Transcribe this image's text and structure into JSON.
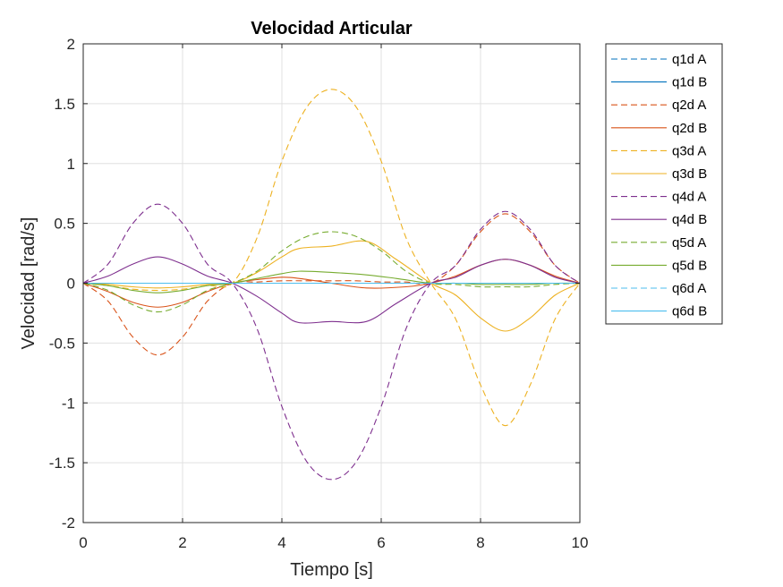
{
  "chart_data": {
    "type": "line",
    "title": "Velocidad Articular",
    "xlabel": "Tiempo [s]",
    "ylabel": "Velocidad [rad/s]",
    "xlim": [
      0,
      10
    ],
    "ylim": [
      -2,
      2
    ],
    "xticks": [
      0,
      2,
      4,
      6,
      8,
      10
    ],
    "yticks": [
      -2,
      -1.5,
      -1,
      -0.5,
      0,
      0.5,
      1,
      1.5,
      2
    ],
    "xtick_labels": [
      "0",
      "2",
      "4",
      "6",
      "8",
      "10"
    ],
    "ytick_labels": [
      "-2",
      "-1.5",
      "-1",
      "-0.5",
      "0",
      "0.5",
      "1",
      "1.5",
      "2"
    ],
    "grid": true,
    "legend_position": "outside-right-top",
    "series": [
      {
        "name": "q1d A",
        "color": "#0072BD",
        "dash": "dashed",
        "x": [
          0,
          3,
          7,
          10
        ],
        "y": [
          0,
          0,
          0,
          0
        ]
      },
      {
        "name": "q1d B",
        "color": "#0072BD",
        "dash": "solid",
        "x": [
          0,
          3,
          7,
          10
        ],
        "y": [
          0,
          0,
          0,
          0
        ]
      },
      {
        "name": "q2d A",
        "color": "#D95319",
        "dash": "dashed",
        "x": [
          0,
          0.5,
          1,
          1.5,
          2,
          2.5,
          3,
          3.5,
          4,
          4.5,
          5,
          5.5,
          6,
          6.5,
          7,
          7.5,
          8,
          8.5,
          9,
          9.5,
          10
        ],
        "y": [
          0,
          -0.15,
          -0.45,
          -0.6,
          -0.45,
          -0.15,
          0,
          0.01,
          0.02,
          0.02,
          0.02,
          0.02,
          0.01,
          0.01,
          0,
          0.15,
          0.43,
          0.58,
          0.43,
          0.15,
          0
        ]
      },
      {
        "name": "q2d B",
        "color": "#D95319",
        "dash": "solid",
        "x": [
          0,
          0.5,
          1,
          1.5,
          2,
          2.5,
          3,
          3.5,
          4,
          4.35,
          5,
          5.7,
          6.5,
          7,
          7.5,
          8,
          8.5,
          9,
          9.5,
          10
        ],
        "y": [
          0,
          -0.07,
          -0.16,
          -0.2,
          -0.16,
          -0.07,
          0,
          0.03,
          0.05,
          0.04,
          0,
          -0.04,
          -0.03,
          0,
          0.06,
          0.15,
          0.2,
          0.15,
          0.06,
          0
        ]
      },
      {
        "name": "q3d A",
        "color": "#EDB120",
        "dash": "dashed",
        "x": [
          0,
          0.5,
          1,
          1.5,
          2,
          2.5,
          3,
          3.5,
          4,
          4.5,
          5,
          5.5,
          6,
          6.5,
          7,
          7.5,
          8,
          8.5,
          9,
          9.5,
          10
        ],
        "y": [
          0,
          -0.02,
          -0.05,
          -0.06,
          -0.05,
          -0.02,
          0,
          0.38,
          1.02,
          1.47,
          1.62,
          1.47,
          1.02,
          0.38,
          0,
          -0.3,
          -0.85,
          -1.19,
          -0.85,
          -0.3,
          0
        ]
      },
      {
        "name": "q3d B",
        "color": "#EDB120",
        "dash": "solid",
        "x": [
          0,
          0.5,
          1,
          1.5,
          2,
          2.5,
          3,
          3.5,
          4,
          4.35,
          5,
          5.7,
          6.3,
          7,
          7.5,
          8,
          8.5,
          9,
          9.5,
          10
        ],
        "y": [
          0,
          -0.01,
          -0.03,
          -0.04,
          -0.03,
          -0.01,
          0,
          0.09,
          0.22,
          0.29,
          0.31,
          0.35,
          0.2,
          0,
          -0.1,
          -0.29,
          -0.4,
          -0.29,
          -0.1,
          0
        ]
      },
      {
        "name": "q4d A",
        "color": "#7E2F8E",
        "dash": "dashed",
        "x": [
          0,
          0.5,
          1,
          1.5,
          2,
          2.5,
          3,
          3.5,
          4,
          4.5,
          5,
          5.5,
          6,
          6.5,
          7,
          7.5,
          8,
          8.5,
          9,
          9.5,
          10
        ],
        "y": [
          0,
          0.16,
          0.5,
          0.66,
          0.5,
          0.16,
          0,
          -0.38,
          -1.03,
          -1.49,
          -1.64,
          -1.49,
          -1.03,
          -0.38,
          0,
          0.15,
          0.45,
          0.6,
          0.45,
          0.15,
          0
        ]
      },
      {
        "name": "q4d B",
        "color": "#7E2F8E",
        "dash": "solid",
        "x": [
          0,
          0.5,
          1,
          1.5,
          2,
          2.5,
          3,
          3.5,
          4,
          4.35,
          5,
          5.7,
          6.3,
          7,
          7.5,
          8,
          8.5,
          9,
          9.5,
          10
        ],
        "y": [
          0,
          0.06,
          0.16,
          0.22,
          0.16,
          0.06,
          0,
          -0.11,
          -0.25,
          -0.33,
          -0.32,
          -0.32,
          -0.17,
          0,
          0.05,
          0.15,
          0.2,
          0.15,
          0.05,
          0
        ]
      },
      {
        "name": "q5d A",
        "color": "#77AC30",
        "dash": "dashed",
        "x": [
          0,
          0.5,
          1,
          1.5,
          2,
          2.5,
          3,
          3.5,
          4,
          4.5,
          5,
          5.5,
          6,
          6.5,
          7,
          7.5,
          8,
          8.5,
          9,
          9.5,
          10
        ],
        "y": [
          0,
          -0.06,
          -0.18,
          -0.24,
          -0.18,
          -0.06,
          0,
          0.1,
          0.27,
          0.39,
          0.43,
          0.39,
          0.27,
          0.1,
          0,
          -0.01,
          -0.03,
          -0.03,
          -0.03,
          -0.01,
          0
        ]
      },
      {
        "name": "q5d B",
        "color": "#77AC30",
        "dash": "solid",
        "x": [
          0,
          0.5,
          1,
          1.5,
          2,
          2.5,
          3,
          3.5,
          4,
          4.35,
          5,
          5.7,
          6.3,
          7,
          7.5,
          8,
          8.5,
          9,
          9.5,
          10
        ],
        "y": [
          0,
          -0.02,
          -0.06,
          -0.08,
          -0.06,
          -0.02,
          0,
          0.04,
          0.08,
          0.1,
          0.09,
          0.07,
          0.04,
          0,
          0,
          -0.01,
          -0.01,
          -0.01,
          0,
          0
        ]
      },
      {
        "name": "q6d A",
        "color": "#4DBEEE",
        "dash": "dashed",
        "x": [
          0,
          3,
          7,
          10
        ],
        "y": [
          0,
          0,
          0,
          0
        ]
      },
      {
        "name": "q6d B",
        "color": "#4DBEEE",
        "dash": "solid",
        "x": [
          0,
          3,
          7,
          10
        ],
        "y": [
          0,
          0,
          0,
          0
        ]
      }
    ]
  }
}
